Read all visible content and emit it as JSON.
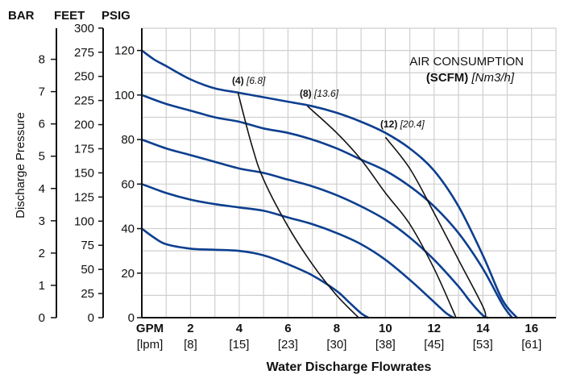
{
  "chart_data": {
    "type": "line",
    "xlabel": "Water Discharge Flowrates",
    "x_unit_primary": "GPM",
    "x_unit_secondary": "[lpm]",
    "xlim": [
      0,
      17
    ],
    "x_ticks": [
      {
        "gpm": "2",
        "lpm": "[8]"
      },
      {
        "gpm": "4",
        "lpm": "[15]"
      },
      {
        "gpm": "6",
        "lpm": "[23]"
      },
      {
        "gpm": "8",
        "lpm": "[30]"
      },
      {
        "gpm": "10",
        "lpm": "[38]"
      },
      {
        "gpm": "12",
        "lpm": "[45]"
      },
      {
        "gpm": "14",
        "lpm": "[53]"
      },
      {
        "gpm": "16",
        "lpm": "[61]"
      }
    ],
    "ylabel": "Discharge Pressure",
    "ylim": [
      0,
      130
    ],
    "y_axes": {
      "bar": {
        "title": "BAR",
        "ticks": [
          "0",
          "1",
          "2",
          "3",
          "4",
          "5",
          "6",
          "7",
          "8"
        ]
      },
      "feet": {
        "title": "FEET",
        "ticks": [
          "0",
          "25",
          "50",
          "75",
          "100",
          "125",
          "150",
          "175",
          "200",
          "225",
          "250",
          "275",
          "300"
        ]
      },
      "psig": {
        "title": "PSIG",
        "ticks": [
          "0",
          "20",
          "40",
          "60",
          "80",
          "100",
          "120"
        ]
      }
    },
    "grid": true,
    "legend_title_line1": "AIR CONSUMPTION",
    "legend_title_line2_bold": "(SCFM)",
    "legend_title_line2_ital": "[Nm3/h]",
    "series": [
      {
        "x": [
          0,
          0.5,
          1,
          2,
          3,
          4,
          5,
          6,
          7,
          8,
          8.5,
          9,
          9.3
        ],
        "y": [
          40,
          36,
          33,
          31,
          30.5,
          30,
          28,
          24,
          19,
          12,
          7,
          2,
          0
        ]
      },
      {
        "x": [
          0,
          1,
          2,
          3,
          4,
          5,
          6,
          7,
          8,
          9,
          10,
          11,
          12,
          12.5,
          12.8
        ],
        "y": [
          60,
          56,
          53,
          51,
          49.5,
          48,
          45,
          42,
          38,
          33,
          26,
          17,
          7,
          2,
          0
        ]
      },
      {
        "x": [
          0,
          1,
          2,
          3,
          4,
          5,
          6,
          7,
          8,
          9,
          10,
          11,
          12,
          13,
          13.5,
          14,
          14.2
        ],
        "y": [
          80,
          76,
          73,
          70,
          67,
          65,
          62,
          59,
          55,
          50,
          44,
          36,
          26,
          14,
          7,
          1,
          0
        ]
      },
      {
        "x": [
          0,
          1,
          2,
          3,
          4,
          5,
          6,
          7,
          8,
          9,
          10,
          11,
          12,
          13,
          14,
          14.8,
          15.2
        ],
        "y": [
          100,
          96,
          93,
          90,
          88,
          85,
          83,
          80,
          76,
          71,
          66,
          59,
          50,
          38,
          22,
          6,
          0
        ]
      },
      {
        "x": [
          0,
          0.5,
          1,
          2,
          3,
          4,
          5,
          6,
          7,
          8,
          9,
          10,
          11,
          12,
          13,
          14,
          14.8,
          15.4
        ],
        "y": [
          120,
          116,
          113,
          107,
          103,
          101,
          99,
          97,
          95,
          92,
          88,
          83,
          76,
          66,
          50,
          28,
          8,
          0
        ]
      }
    ],
    "consumption_lines": [
      {
        "bold": "(4)",
        "ital": "[6.8]",
        "x": [
          3.95,
          4.5,
          5,
          6,
          7,
          8,
          8.9
        ],
        "y": [
          101,
          78,
          62,
          41,
          24,
          10,
          0
        ]
      },
      {
        "bold": "(8)",
        "ital": "[13.6]",
        "x": [
          6.8,
          8,
          9,
          10,
          11,
          12,
          12.9
        ],
        "y": [
          95,
          83,
          71,
          56,
          42,
          22,
          0
        ]
      },
      {
        "bold": "(12)",
        "ital": "[20.4]",
        "x": [
          10,
          11,
          12,
          13,
          14,
          14.1
        ],
        "y": [
          81,
          67,
          47,
          26,
          5,
          0
        ]
      }
    ]
  }
}
